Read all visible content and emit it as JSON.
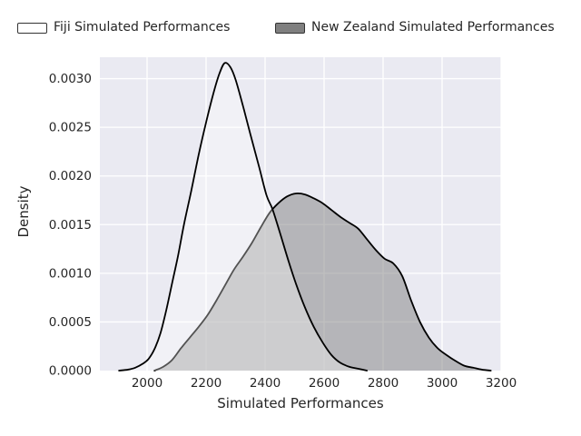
{
  "legend": {
    "items": [
      {
        "id": "fiji",
        "label": "Fiji Simulated Performances",
        "swatch_fill": "#ffffff",
        "swatch_border": "#333333"
      },
      {
        "id": "new-zealand",
        "label": "New Zealand Simulated Performances",
        "swatch_fill": "#7f7f7f",
        "swatch_border": "#333333"
      }
    ]
  },
  "chart_data": {
    "type": "area",
    "subtype": "kde-density",
    "title": "",
    "xlabel": "Simulated Performances",
    "ylabel": "Density",
    "xlim": [
      1840,
      3200
    ],
    "ylim": [
      0,
      0.00322
    ],
    "grid": true,
    "plot_background": "#eaeaf2",
    "grid_color": "#ffffff",
    "text_color": "#262626",
    "legend_position": "top",
    "x_ticks": [
      2000,
      2200,
      2400,
      2600,
      2800,
      3000,
      3200
    ],
    "x_tick_labels": [
      "2000",
      "2200",
      "2400",
      "2600",
      "2800",
      "3000",
      "3200"
    ],
    "y_ticks": [
      0.0,
      0.0005,
      0.001,
      0.0015,
      0.002,
      0.0025,
      0.003
    ],
    "y_tick_labels": [
      "0.0000",
      "0.0005",
      "0.0010",
      "0.0015",
      "0.0020",
      "0.0025",
      "0.0030"
    ],
    "series": [
      {
        "id": "fiji",
        "name": "Fiji Simulated Performances",
        "line_color": "#000000",
        "fill_color": "rgba(255,255,255,0.32)",
        "peak": {
          "x": 2263,
          "density": 0.00316
        },
        "points": [
          [
            1905,
            0
          ],
          [
            1935,
            1e-05
          ],
          [
            1960,
            3e-05
          ],
          [
            1985,
            7e-05
          ],
          [
            2005,
            0.00012
          ],
          [
            2025,
            0.00022
          ],
          [
            2045,
            0.00038
          ],
          [
            2065,
            0.00062
          ],
          [
            2085,
            0.0009
          ],
          [
            2105,
            0.00118
          ],
          [
            2125,
            0.0015
          ],
          [
            2150,
            0.00185
          ],
          [
            2175,
            0.00222
          ],
          [
            2200,
            0.00255
          ],
          [
            2225,
            0.00285
          ],
          [
            2245,
            0.00305
          ],
          [
            2263,
            0.00316
          ],
          [
            2282,
            0.00312
          ],
          [
            2300,
            0.00299
          ],
          [
            2325,
            0.00272
          ],
          [
            2350,
            0.00243
          ],
          [
            2380,
            0.00209
          ],
          [
            2405,
            0.0018
          ],
          [
            2425,
            0.00166
          ],
          [
            2450,
            0.00142
          ],
          [
            2480,
            0.00112
          ],
          [
            2505,
            0.00089
          ],
          [
            2535,
            0.00065
          ],
          [
            2565,
            0.00045
          ],
          [
            2595,
            0.00029
          ],
          [
            2625,
            0.00016
          ],
          [
            2655,
            8e-05
          ],
          [
            2685,
            4e-05
          ],
          [
            2715,
            2e-05
          ],
          [
            2745,
            0
          ]
        ]
      },
      {
        "id": "new-zealand",
        "name": "New Zealand Simulated Performances",
        "line_color": "#000000",
        "fill_color": "rgba(127,127,127,0.5)",
        "peak": {
          "x": 2505,
          "density": 0.00182
        },
        "points": [
          [
            2025,
            0
          ],
          [
            2055,
            4e-05
          ],
          [
            2085,
            0.00011
          ],
          [
            2115,
            0.00023
          ],
          [
            2145,
            0.00034
          ],
          [
            2175,
            0.00045
          ],
          [
            2205,
            0.00057
          ],
          [
            2235,
            0.00072
          ],
          [
            2265,
            0.00088
          ],
          [
            2295,
            0.00104
          ],
          [
            2325,
            0.00117
          ],
          [
            2355,
            0.00131
          ],
          [
            2385,
            0.00147
          ],
          [
            2415,
            0.00162
          ],
          [
            2445,
            0.00172
          ],
          [
            2475,
            0.00179
          ],
          [
            2505,
            0.00182
          ],
          [
            2535,
            0.00181
          ],
          [
            2565,
            0.00177
          ],
          [
            2595,
            0.00172
          ],
          [
            2625,
            0.00165
          ],
          [
            2655,
            0.00158
          ],
          [
            2685,
            0.00152
          ],
          [
            2715,
            0.00146
          ],
          [
            2745,
            0.00135
          ],
          [
            2775,
            0.00124
          ],
          [
            2805,
            0.00115
          ],
          [
            2835,
            0.0011
          ],
          [
            2865,
            0.00097
          ],
          [
            2895,
            0.00072
          ],
          [
            2925,
            0.0005
          ],
          [
            2955,
            0.00034
          ],
          [
            2985,
            0.00023
          ],
          [
            3015,
            0.00016
          ],
          [
            3045,
            0.0001
          ],
          [
            3075,
            5e-05
          ],
          [
            3105,
            3e-05
          ],
          [
            3135,
            1e-05
          ],
          [
            3165,
            0
          ]
        ]
      }
    ]
  }
}
